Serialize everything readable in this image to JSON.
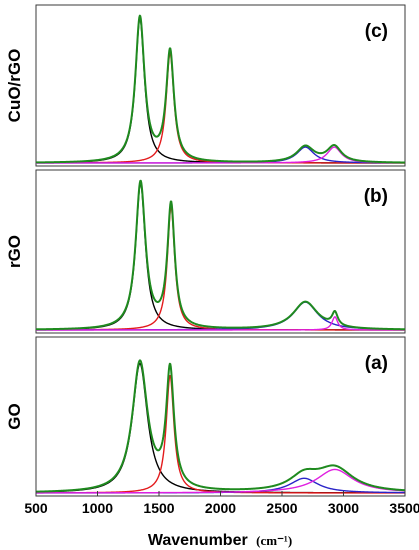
{
  "chart_data": {
    "type": "line",
    "xlabel_main": "Wavenumber",
    "xlabel_unit": "(cm⁻¹)",
    "xlim": [
      500,
      3500
    ],
    "x_ticks": [
      500,
      1000,
      1500,
      2000,
      2500,
      3000,
      3500
    ],
    "x_tick_labels": [
      "500",
      "1000",
      "1500",
      "2000",
      "2500",
      "3000",
      "3500"
    ],
    "colors": {
      "D_band": "#000000",
      "G_band": "#e31a1c",
      "2D_band": "#2a24c8",
      "DG_band": "#e020e0",
      "fit_envelope": "#1f8a1f",
      "frame": "#3a3a3a"
    },
    "panels": [
      {
        "id": "c",
        "label": "(c)",
        "ylabel": "CuO/rGO",
        "ymax": 1.05,
        "peaks": [
          {
            "band": "D_band",
            "center": 1345,
            "height": 1.0,
            "hwhm": 45
          },
          {
            "band": "G_band",
            "center": 1590,
            "height": 0.76,
            "hwhm": 38
          },
          {
            "band": "2D_band",
            "center": 2690,
            "height": 0.11,
            "hwhm": 85
          },
          {
            "band": "DG_band",
            "center": 2925,
            "height": 0.11,
            "hwhm": 70
          }
        ]
      },
      {
        "id": "b",
        "label": "(b)",
        "ylabel": "rGO",
        "ymax": 1.05,
        "peaks": [
          {
            "band": "D_band",
            "center": 1350,
            "height": 1.0,
            "hwhm": 48
          },
          {
            "band": "G_band",
            "center": 1598,
            "height": 0.84,
            "hwhm": 36
          },
          {
            "band": "2D_band",
            "center": 2690,
            "height": 0.19,
            "hwhm": 120
          },
          {
            "band": "DG_band",
            "center": 2930,
            "height": 0.09,
            "hwhm": 28
          }
        ]
      },
      {
        "id": "a",
        "label": "(a)",
        "ylabel": "GO",
        "ymax": 1.02,
        "peaks": [
          {
            "band": "D_band",
            "center": 1345,
            "height": 0.88,
            "hwhm": 75
          },
          {
            "band": "G_band",
            "center": 1590,
            "height": 0.8,
            "hwhm": 38
          },
          {
            "band": "2D_band",
            "center": 2680,
            "height": 0.1,
            "hwhm": 140
          },
          {
            "band": "DG_band",
            "center": 2930,
            "height": 0.16,
            "hwhm": 180
          }
        ]
      }
    ]
  }
}
